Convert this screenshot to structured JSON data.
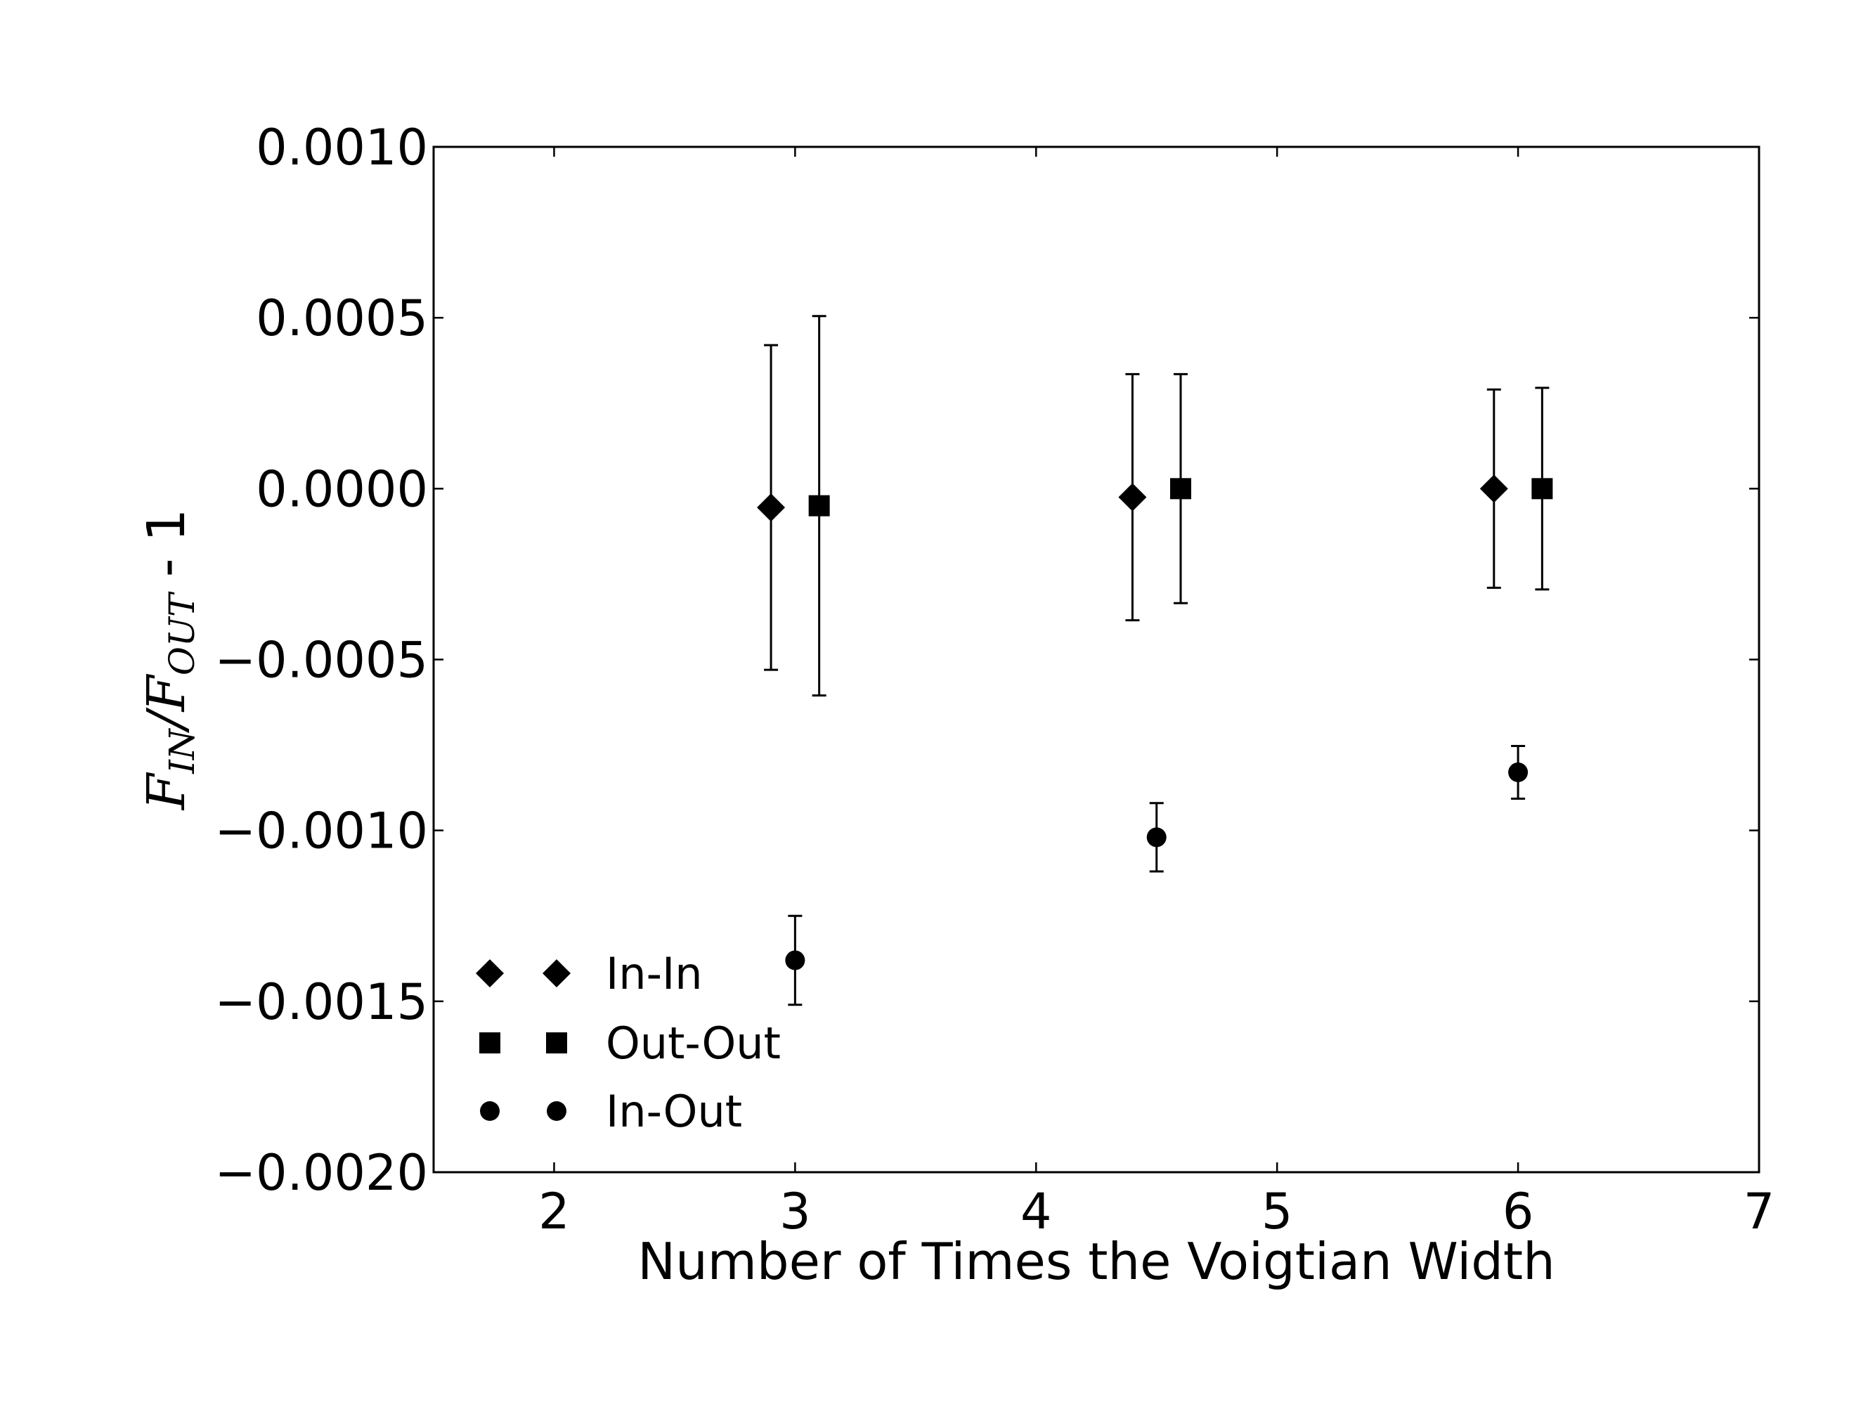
{
  "chart_data": {
    "type": "scatter",
    "title": "",
    "xlabel": "Number of Times the Voigtian Width",
    "ylabel": {
      "F1": "F",
      "sub1": "IN",
      "slash": "/",
      "F2": "F",
      "sub2": "OUT",
      "rest": " - 1"
    },
    "xlim": [
      1.5,
      7
    ],
    "ylim": [
      -0.002,
      0.001
    ],
    "xticks": [
      {
        "value": 2,
        "label": "2"
      },
      {
        "value": 3,
        "label": "3"
      },
      {
        "value": 4,
        "label": "4"
      },
      {
        "value": 5,
        "label": "5"
      },
      {
        "value": 6,
        "label": "6"
      },
      {
        "value": 7,
        "label": "7"
      }
    ],
    "yticks": [
      {
        "value": 0.001,
        "label": "0.0010"
      },
      {
        "value": 0.0005,
        "label": "0.0005"
      },
      {
        "value": 0.0,
        "label": "0.0000"
      },
      {
        "value": -0.0005,
        "label": "−0.0005"
      },
      {
        "value": -0.001,
        "label": "−0.0010"
      },
      {
        "value": -0.0015,
        "label": "−0.0015"
      },
      {
        "value": -0.002,
        "label": "−0.0020"
      }
    ],
    "grid": false,
    "legend_position": "lower-left",
    "marker_color": "#000000",
    "series": [
      {
        "name": "In-In",
        "marker": "diamond",
        "points": [
          {
            "x": 2.9,
            "y": -5.5e-05,
            "err": 0.000475
          },
          {
            "x": 4.4,
            "y": -2.5e-05,
            "err": 0.00036
          },
          {
            "x": 5.9,
            "y": 0.0,
            "err": 0.00029
          }
        ]
      },
      {
        "name": "Out-Out",
        "marker": "square",
        "points": [
          {
            "x": 3.1,
            "y": -5e-05,
            "err": 0.000555
          },
          {
            "x": 4.6,
            "y": 0.0,
            "err": 0.000335
          },
          {
            "x": 6.1,
            "y": 0.0,
            "err": 0.000295
          }
        ]
      },
      {
        "name": "In-Out",
        "marker": "circle",
        "points": [
          {
            "x": 3.0,
            "y": -0.00138,
            "err": 0.00013
          },
          {
            "x": 4.5,
            "y": -0.00102,
            "err": 0.0001
          },
          {
            "x": 6.0,
            "y": -0.00083,
            "err": 7.7e-05
          }
        ]
      }
    ]
  }
}
